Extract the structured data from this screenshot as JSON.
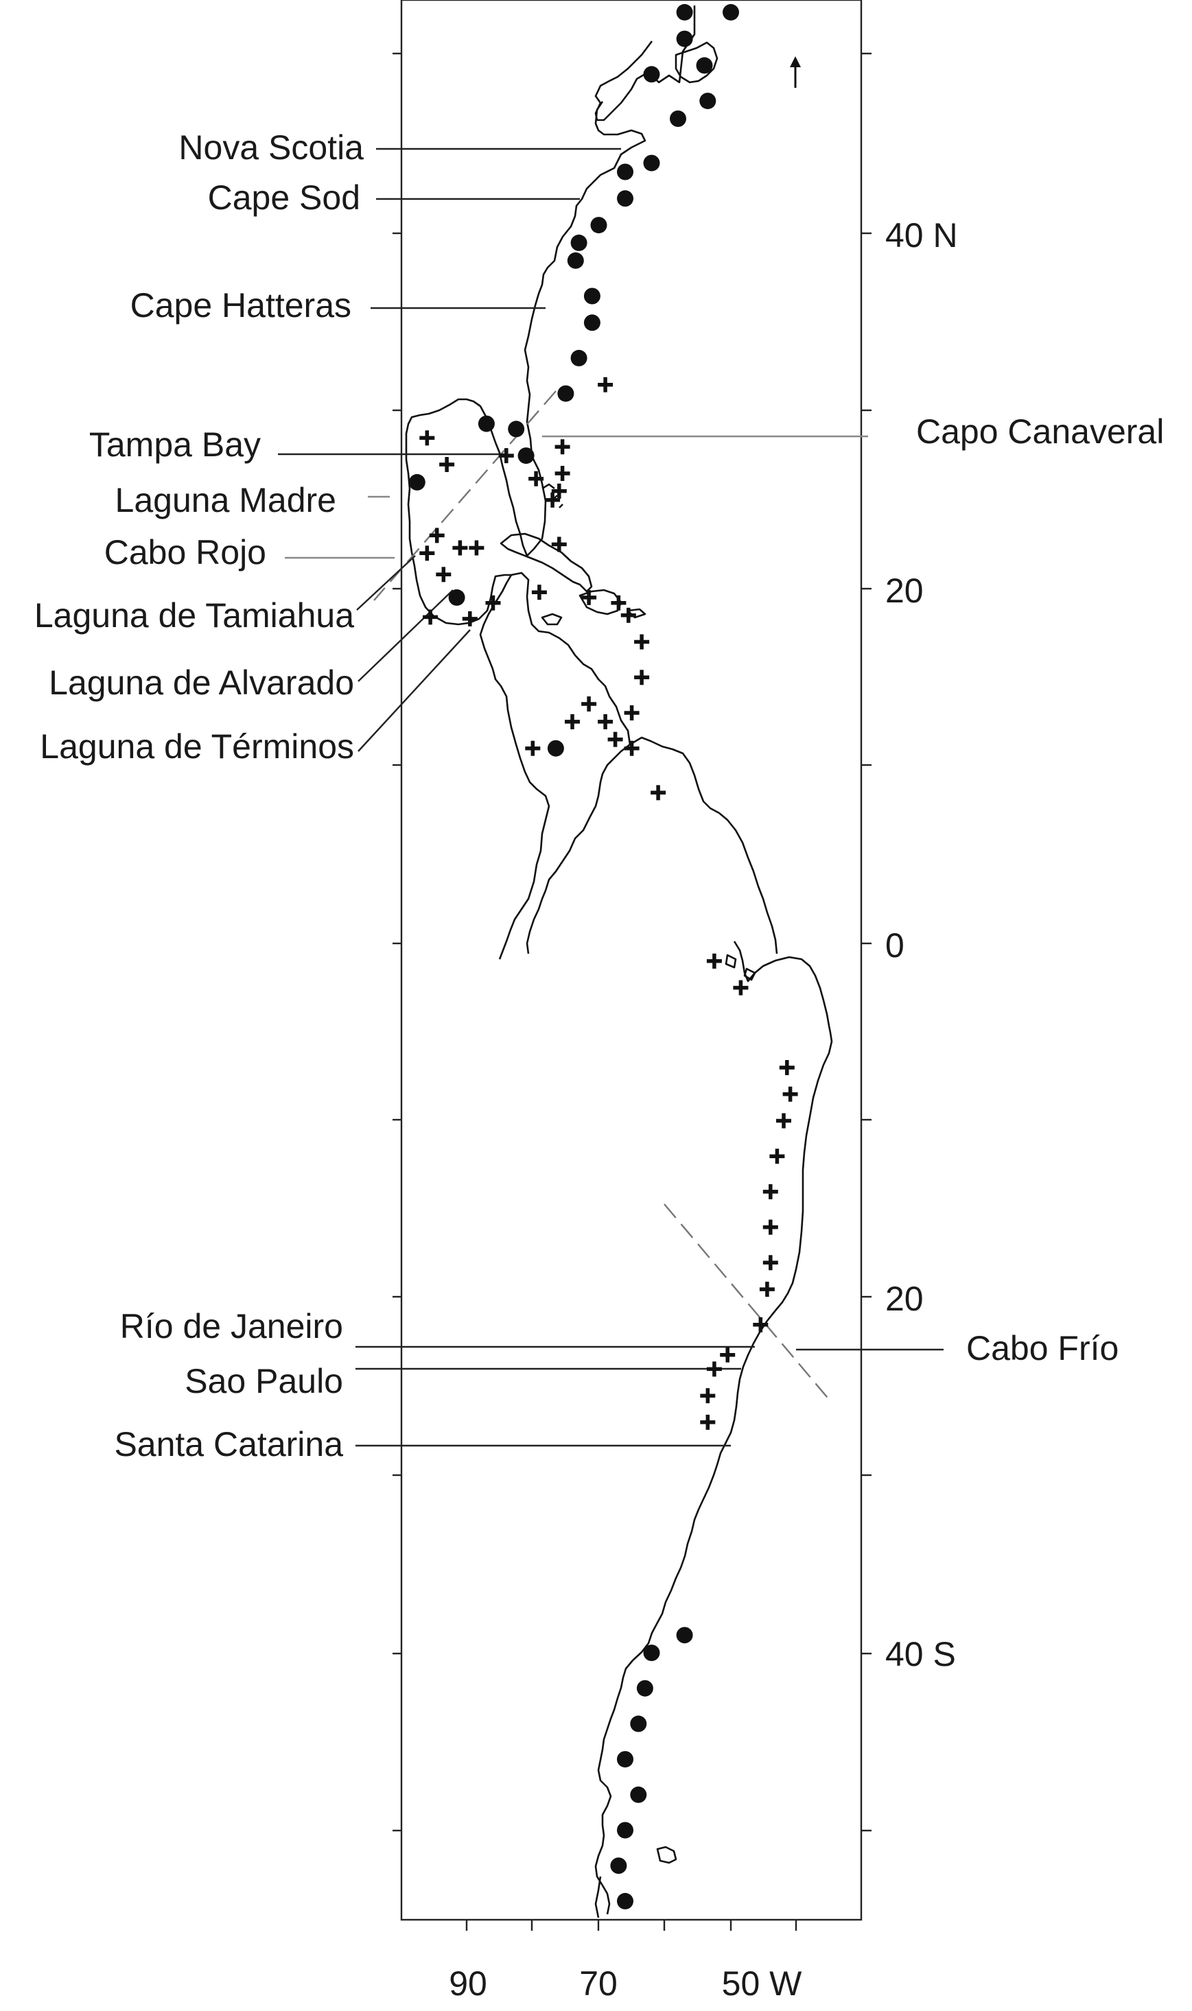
{
  "chart_data": {
    "type": "map",
    "x_axis": {
      "ticks": [
        "90",
        "70",
        "50 W"
      ]
    },
    "y_axis": {
      "ticks": [
        "40 N",
        "20",
        "0",
        "20",
        "40 S"
      ]
    },
    "place_labels_left": [
      "Nova Scotia",
      "Cape Sod",
      "Cape Hatteras",
      "Tampa Bay",
      "Laguna Madre",
      "Cabo Rojo",
      "Laguna de Tamiahua",
      "Laguna de Alvarado",
      "Laguna de Términos",
      "Río de Janeiro",
      "Sao Paulo",
      "Santa Catarina"
    ],
    "place_labels_right": [
      "Capo Canaveral",
      "Cabo Frío"
    ],
    "marker_types": [
      "circle",
      "plus"
    ],
    "circle_sites": [
      [
        -57,
        52.5
      ],
      [
        -57,
        51
      ],
      [
        -54,
        49.5
      ],
      [
        -53.5,
        47.5
      ],
      [
        -58,
        46.5
      ],
      [
        -62,
        49
      ],
      [
        -50,
        52.5
      ],
      [
        -62,
        44
      ],
      [
        -66,
        43.5
      ],
      [
        -66,
        42
      ],
      [
        -70,
        40.5
      ],
      [
        -73,
        39.5
      ],
      [
        -73.5,
        38.5
      ],
      [
        -71,
        36.5
      ],
      [
        -71,
        35
      ],
      [
        -73,
        33
      ],
      [
        -75,
        31
      ],
      [
        -82.5,
        29
      ],
      [
        -87,
        29.3
      ],
      [
        -81,
        27.5
      ],
      [
        -97.5,
        26
      ],
      [
        -91.5,
        19.5
      ],
      [
        -76.5,
        11
      ],
      [
        -57,
        -39
      ],
      [
        -62,
        -40
      ],
      [
        -63,
        -42
      ],
      [
        -64,
        -44
      ],
      [
        -66,
        -46
      ],
      [
        -64,
        -48
      ],
      [
        -66,
        -50
      ],
      [
        -67,
        -52
      ],
      [
        -66,
        -54
      ]
    ],
    "plus_sites": [
      [
        -69,
        31.5
      ],
      [
        -75.5,
        28
      ],
      [
        -75.5,
        26.5
      ],
      [
        -76,
        25.5
      ],
      [
        -77,
        25
      ],
      [
        -96,
        28.5
      ],
      [
        -93,
        27
      ],
      [
        -84,
        27.5
      ],
      [
        -79.5,
        26.2
      ],
      [
        -76,
        22.5
      ],
      [
        -94.5,
        23
      ],
      [
        -91,
        22.3
      ],
      [
        -88.5,
        22.3
      ],
      [
        -96,
        22
      ],
      [
        -93.5,
        20.8
      ],
      [
        -86,
        19.2
      ],
      [
        -89.5,
        18.3
      ],
      [
        -95.5,
        18.4
      ],
      [
        -79,
        19.8
      ],
      [
        -71.5,
        19.5
      ],
      [
        -67,
        19.2
      ],
      [
        -65.5,
        18.5
      ],
      [
        -63.5,
        17
      ],
      [
        -63.5,
        15
      ],
      [
        -65,
        13
      ],
      [
        -65,
        11
      ],
      [
        -71.5,
        13.5
      ],
      [
        -69,
        12.5
      ],
      [
        -74,
        12.5
      ],
      [
        -67.5,
        11.5
      ],
      [
        -80,
        11
      ],
      [
        -61,
        8.5
      ],
      [
        -52.5,
        -1
      ],
      [
        -48.5,
        -2.5
      ],
      [
        -41.5,
        -7
      ],
      [
        -41,
        -8.5
      ],
      [
        -42,
        -10
      ],
      [
        -43,
        -12
      ],
      [
        -44,
        -14
      ],
      [
        -44,
        -16
      ],
      [
        -44,
        -18
      ],
      [
        -44.5,
        -19.5
      ],
      [
        -45.5,
        -21.5
      ],
      [
        -50.5,
        -23.2
      ],
      [
        -52.5,
        -24
      ],
      [
        -53.5,
        -25.5
      ],
      [
        -53.5,
        -27
      ]
    ]
  }
}
